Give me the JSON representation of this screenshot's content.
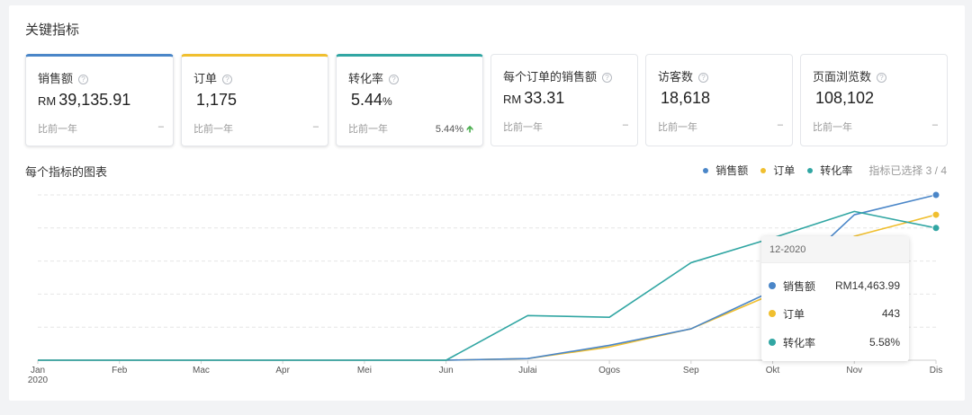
{
  "section_title": "关键指标",
  "help_glyph": "?",
  "cards": [
    {
      "name": "销售额",
      "currency": "RM",
      "value": "39,135.91",
      "unit": "",
      "compare": "比前一年",
      "delta": "–",
      "active": true,
      "color": "#4a86c8"
    },
    {
      "name": "订单",
      "currency": "",
      "value": "1,175",
      "unit": "",
      "compare": "比前一年",
      "delta": "–",
      "active": true,
      "color": "#f0bf2f"
    },
    {
      "name": "转化率",
      "currency": "",
      "value": "5.44",
      "unit": "%",
      "compare": "比前一年",
      "delta": "5.44%",
      "active": true,
      "color": "#31a6a3"
    },
    {
      "name": "每个订单的销售额",
      "currency": "RM",
      "value": "33.31",
      "unit": "",
      "compare": "比前一年",
      "delta": "–",
      "active": false,
      "color": ""
    },
    {
      "name": "访客数",
      "currency": "",
      "value": "18,618",
      "unit": "",
      "compare": "比前一年",
      "delta": "–",
      "active": false,
      "color": ""
    },
    {
      "name": "页面浏览数",
      "currency": "",
      "value": "108,102",
      "unit": "",
      "compare": "比前一年",
      "delta": "–",
      "active": false,
      "color": ""
    }
  ],
  "chart_section": {
    "title": "每个指标的图表",
    "legend": [
      {
        "label": "销售额",
        "color": "#4a86c8"
      },
      {
        "label": "订单",
        "color": "#f0bf2f"
      },
      {
        "label": "转化率",
        "color": "#31a6a3"
      }
    ],
    "selected_text": "指标已选择 3 / 4"
  },
  "chart_data": {
    "type": "line",
    "categories": [
      "Jan",
      "Feb",
      "Mac",
      "Apr",
      "Mei",
      "Jun",
      "Julai",
      "Ogos",
      "Sep",
      "Okt",
      "Nov",
      "Dis"
    ],
    "year_label": "2020",
    "grid": true,
    "series": [
      {
        "name": "销售额",
        "color": "#4a86c8",
        "values": [
          0,
          0,
          0,
          0,
          0,
          0,
          0.01,
          0.09,
          0.19,
          0.42,
          0.88,
          1.0
        ]
      },
      {
        "name": "订单",
        "color": "#f0bf2f",
        "values": [
          0,
          0,
          0,
          0,
          0,
          0,
          0.01,
          0.08,
          0.19,
          0.4,
          0.75,
          0.88
        ]
      },
      {
        "name": "转化率",
        "color": "#31a6a3",
        "values": [
          0,
          0,
          0,
          0,
          0,
          0,
          0.27,
          0.26,
          0.59,
          0.74,
          0.9,
          0.8
        ]
      }
    ],
    "tooltip": {
      "period": "12-2020",
      "rows": [
        {
          "label": "销售额",
          "value": "RM14,463.99",
          "color": "#4a86c8"
        },
        {
          "label": "订单",
          "value": "443",
          "color": "#f0bf2f"
        },
        {
          "label": "转化率",
          "value": "5.58%",
          "color": "#31a6a3"
        }
      ]
    }
  }
}
